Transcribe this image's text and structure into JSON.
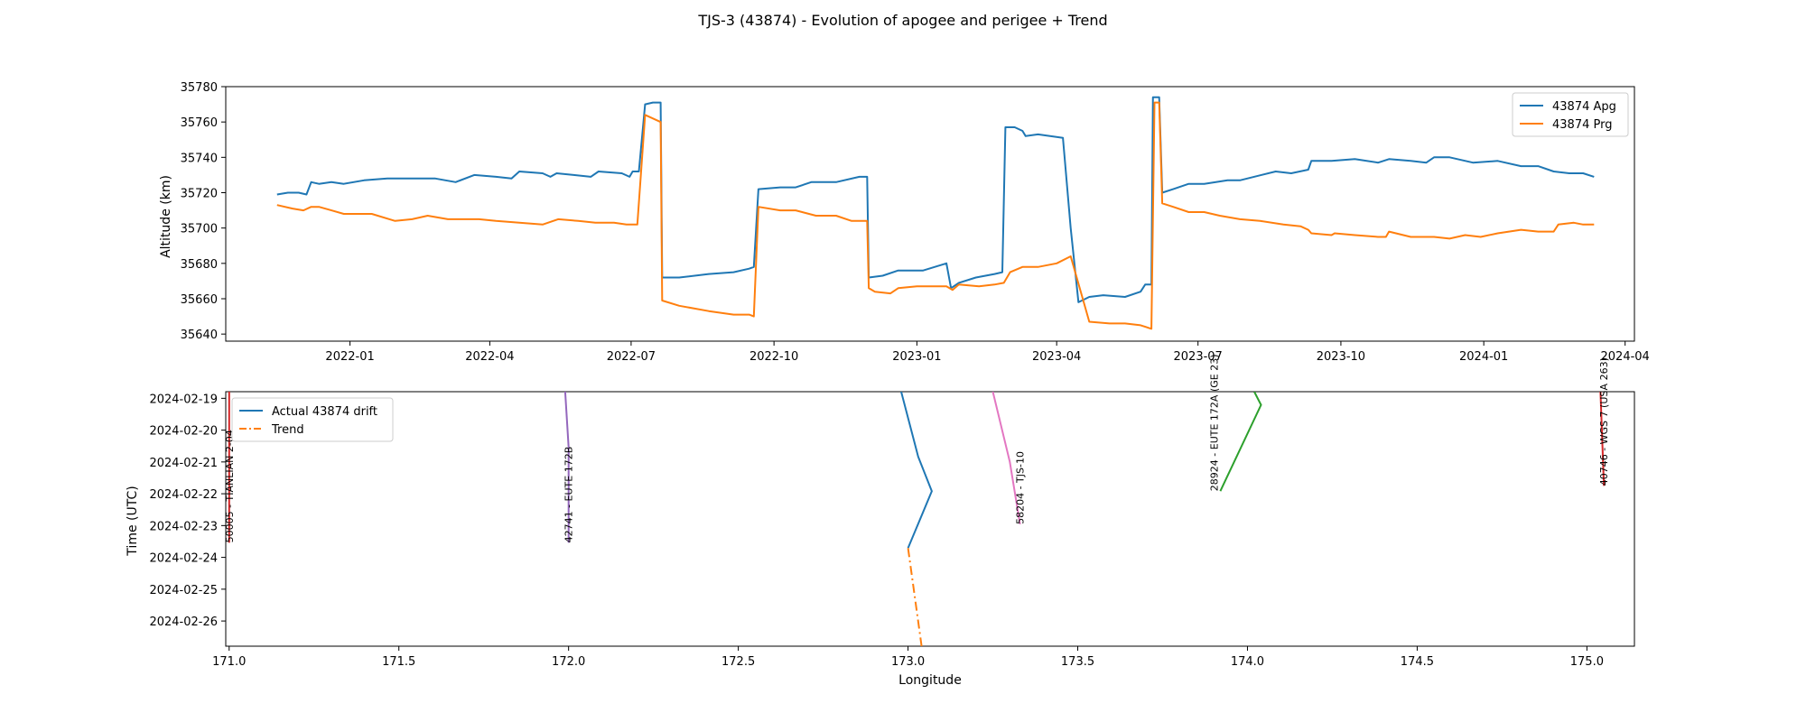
{
  "figure": {
    "title": "TJS-3 (43874) - Evolution of apogee and perigee + Trend"
  },
  "chart_data": [
    {
      "type": "line",
      "ylabel": "Altitude (km)",
      "xlabel": "",
      "x_axis": "date",
      "xlim": [
        "2021-10-13",
        "2024-04-07"
      ],
      "ylim": [
        35636,
        35780
      ],
      "x_ticks": [
        "2022-01-01",
        "2022-04-01",
        "2022-07-01",
        "2022-10-01",
        "2023-01-01",
        "2023-04-01",
        "2023-07-01",
        "2023-10-01",
        "2024-01-01",
        "2024-04-01"
      ],
      "x_tick_labels": [
        "2022-01",
        "2022-04",
        "2022-07",
        "2022-10",
        "2023-01",
        "2023-04",
        "2023-07",
        "2023-10",
        "2024-01",
        "2024-04"
      ],
      "y_ticks": [
        35640,
        35660,
        35680,
        35700,
        35720,
        35740,
        35760,
        35780
      ],
      "y_tick_labels": [
        "35640",
        "35660",
        "35680",
        "35700",
        "35720",
        "35740",
        "35760",
        "35780"
      ],
      "legend_position": "top-right",
      "grid": false,
      "series": [
        {
          "name": "43874 Apg",
          "color": "#1f77b4",
          "points": [
            [
              "2021-11-15",
              35719
            ],
            [
              "2021-11-22",
              35720
            ],
            [
              "2021-11-29",
              35720
            ],
            [
              "2021-12-04",
              35719
            ],
            [
              "2021-12-07",
              35726
            ],
            [
              "2021-12-12",
              35725
            ],
            [
              "2021-12-20",
              35726
            ],
            [
              "2021-12-28",
              35725
            ],
            [
              "2022-01-10",
              35727
            ],
            [
              "2022-01-25",
              35728
            ],
            [
              "2022-02-05",
              35728
            ],
            [
              "2022-02-25",
              35728
            ],
            [
              "2022-03-10",
              35726
            ],
            [
              "2022-03-22",
              35730
            ],
            [
              "2022-04-05",
              35729
            ],
            [
              "2022-04-15",
              35728
            ],
            [
              "2022-04-20",
              35732
            ],
            [
              "2022-05-05",
              35731
            ],
            [
              "2022-05-10",
              35729
            ],
            [
              "2022-05-14",
              35731
            ],
            [
              "2022-05-25",
              35730
            ],
            [
              "2022-06-05",
              35729
            ],
            [
              "2022-06-10",
              35732
            ],
            [
              "2022-06-25",
              35731
            ],
            [
              "2022-06-30",
              35729
            ],
            [
              "2022-07-02",
              35732
            ],
            [
              "2022-07-06",
              35732
            ],
            [
              "2022-07-10",
              35770
            ],
            [
              "2022-07-15",
              35771
            ],
            [
              "2022-07-20",
              35771
            ],
            [
              "2022-07-21",
              35672
            ],
            [
              "2022-08-01",
              35672
            ],
            [
              "2022-08-20",
              35674
            ],
            [
              "2022-09-05",
              35675
            ],
            [
              "2022-09-15",
              35677
            ],
            [
              "2022-09-18",
              35678
            ],
            [
              "2022-09-21",
              35722
            ],
            [
              "2022-10-05",
              35723
            ],
            [
              "2022-10-15",
              35723
            ],
            [
              "2022-10-25",
              35726
            ],
            [
              "2022-11-10",
              35726
            ],
            [
              "2022-11-25",
              35729
            ],
            [
              "2022-11-30",
              35729
            ],
            [
              "2022-12-01",
              35672
            ],
            [
              "2022-12-10",
              35673
            ],
            [
              "2022-12-20",
              35676
            ],
            [
              "2023-01-05",
              35676
            ],
            [
              "2023-01-20",
              35680
            ],
            [
              "2023-01-23",
              35666
            ],
            [
              "2023-01-28",
              35669
            ],
            [
              "2023-02-08",
              35672
            ],
            [
              "2023-02-20",
              35674
            ],
            [
              "2023-02-25",
              35675
            ],
            [
              "2023-02-27",
              35757
            ],
            [
              "2023-03-05",
              35757
            ],
            [
              "2023-03-10",
              35755
            ],
            [
              "2023-03-12",
              35752
            ],
            [
              "2023-03-20",
              35753
            ],
            [
              "2023-04-05",
              35751
            ],
            [
              "2023-04-10",
              35700
            ],
            [
              "2023-04-15",
              35658
            ],
            [
              "2023-04-22",
              35661
            ],
            [
              "2023-05-01",
              35662
            ],
            [
              "2023-05-15",
              35661
            ],
            [
              "2023-05-25",
              35664
            ],
            [
              "2023-05-28",
              35668
            ],
            [
              "2023-06-01",
              35668
            ],
            [
              "2023-06-02",
              35774
            ],
            [
              "2023-06-06",
              35774
            ],
            [
              "2023-06-08",
              35720
            ],
            [
              "2023-06-15",
              35722
            ],
            [
              "2023-06-25",
              35725
            ],
            [
              "2023-07-05",
              35725
            ],
            [
              "2023-07-20",
              35727
            ],
            [
              "2023-07-28",
              35727
            ],
            [
              "2023-08-20",
              35732
            ],
            [
              "2023-08-30",
              35731
            ],
            [
              "2023-09-10",
              35733
            ],
            [
              "2023-09-12",
              35738
            ],
            [
              "2023-09-25",
              35738
            ],
            [
              "2023-10-10",
              35739
            ],
            [
              "2023-10-25",
              35737
            ],
            [
              "2023-11-01",
              35739
            ],
            [
              "2023-11-15",
              35738
            ],
            [
              "2023-11-25",
              35737
            ],
            [
              "2023-11-30",
              35740
            ],
            [
              "2023-12-10",
              35740
            ],
            [
              "2023-12-25",
              35737
            ],
            [
              "2024-01-10",
              35738
            ],
            [
              "2024-01-25",
              35735
            ],
            [
              "2024-02-05",
              35735
            ],
            [
              "2024-02-15",
              35732
            ],
            [
              "2024-02-25",
              35731
            ],
            [
              "2024-03-05",
              35731
            ],
            [
              "2024-03-12",
              35729
            ]
          ]
        },
        {
          "name": "43874 Prg",
          "color": "#ff7f0e",
          "points": [
            [
              "2021-11-15",
              35713
            ],
            [
              "2021-11-25",
              35711
            ],
            [
              "2021-12-02",
              35710
            ],
            [
              "2021-12-07",
              35712
            ],
            [
              "2021-12-12",
              35712
            ],
            [
              "2021-12-20",
              35710
            ],
            [
              "2021-12-28",
              35708
            ],
            [
              "2022-01-15",
              35708
            ],
            [
              "2022-01-30",
              35704
            ],
            [
              "2022-02-10",
              35705
            ],
            [
              "2022-02-20",
              35707
            ],
            [
              "2022-03-05",
              35705
            ],
            [
              "2022-03-15",
              35705
            ],
            [
              "2022-03-25",
              35705
            ],
            [
              "2022-04-05",
              35704
            ],
            [
              "2022-04-20",
              35703
            ],
            [
              "2022-05-05",
              35702
            ],
            [
              "2022-05-15",
              35705
            ],
            [
              "2022-05-28",
              35704
            ],
            [
              "2022-06-08",
              35703
            ],
            [
              "2022-06-20",
              35703
            ],
            [
              "2022-06-28",
              35702
            ],
            [
              "2022-07-05",
              35702
            ],
            [
              "2022-07-10",
              35764
            ],
            [
              "2022-07-20",
              35760
            ],
            [
              "2022-07-21",
              35659
            ],
            [
              "2022-08-01",
              35656
            ],
            [
              "2022-08-20",
              35653
            ],
            [
              "2022-09-05",
              35651
            ],
            [
              "2022-09-15",
              35651
            ],
            [
              "2022-09-18",
              35650
            ],
            [
              "2022-09-21",
              35712
            ],
            [
              "2022-10-05",
              35710
            ],
            [
              "2022-10-15",
              35710
            ],
            [
              "2022-10-28",
              35707
            ],
            [
              "2022-11-10",
              35707
            ],
            [
              "2022-11-20",
              35704
            ],
            [
              "2022-11-30",
              35704
            ],
            [
              "2022-12-01",
              35666
            ],
            [
              "2022-12-05",
              35664
            ],
            [
              "2022-12-15",
              35663
            ],
            [
              "2022-12-20",
              35666
            ],
            [
              "2023-01-01",
              35667
            ],
            [
              "2023-01-20",
              35667
            ],
            [
              "2023-01-24",
              35665
            ],
            [
              "2023-01-28",
              35668
            ],
            [
              "2023-02-10",
              35667
            ],
            [
              "2023-02-20",
              35668
            ],
            [
              "2023-02-26",
              35669
            ],
            [
              "2023-03-02",
              35675
            ],
            [
              "2023-03-10",
              35678
            ],
            [
              "2023-03-20",
              35678
            ],
            [
              "2023-04-01",
              35680
            ],
            [
              "2023-04-10",
              35684
            ],
            [
              "2023-04-22",
              35647
            ],
            [
              "2023-05-05",
              35646
            ],
            [
              "2023-05-15",
              35646
            ],
            [
              "2023-05-25",
              35645
            ],
            [
              "2023-06-01",
              35643
            ],
            [
              "2023-06-03",
              35771
            ],
            [
              "2023-06-06",
              35771
            ],
            [
              "2023-06-08",
              35714
            ],
            [
              "2023-06-15",
              35712
            ],
            [
              "2023-06-25",
              35709
            ],
            [
              "2023-07-05",
              35709
            ],
            [
              "2023-07-15",
              35707
            ],
            [
              "2023-07-28",
              35705
            ],
            [
              "2023-08-10",
              35704
            ],
            [
              "2023-08-25",
              35702
            ],
            [
              "2023-09-05",
              35701
            ],
            [
              "2023-09-10",
              35699
            ],
            [
              "2023-09-12",
              35697
            ],
            [
              "2023-09-25",
              35696
            ],
            [
              "2023-09-27",
              35697
            ],
            [
              "2023-10-10",
              35696
            ],
            [
              "2023-10-25",
              35695
            ],
            [
              "2023-10-30",
              35695
            ],
            [
              "2023-11-01",
              35698
            ],
            [
              "2023-11-15",
              35695
            ],
            [
              "2023-11-30",
              35695
            ],
            [
              "2023-12-10",
              35694
            ],
            [
              "2023-12-20",
              35696
            ],
            [
              "2023-12-30",
              35695
            ],
            [
              "2024-01-10",
              35697
            ],
            [
              "2024-01-25",
              35699
            ],
            [
              "2024-02-05",
              35698
            ],
            [
              "2024-02-15",
              35698
            ],
            [
              "2024-02-18",
              35702
            ],
            [
              "2024-02-28",
              35703
            ],
            [
              "2024-03-05",
              35702
            ],
            [
              "2024-03-12",
              35702
            ]
          ]
        }
      ]
    },
    {
      "type": "line",
      "xlabel": "Longitude",
      "ylabel": "Time (UTC)",
      "y_axis": "date",
      "xlim": [
        170.99,
        175.14
      ],
      "ylim": [
        "2024-02-18T19:00",
        "2024-02-26T19:00"
      ],
      "y_inverted": true,
      "x_ticks": [
        171.0,
        171.5,
        172.0,
        172.5,
        173.0,
        173.5,
        174.0,
        174.5,
        175.0
      ],
      "x_tick_labels": [
        "171.0",
        "171.5",
        "172.0",
        "172.5",
        "173.0",
        "173.5",
        "174.0",
        "174.5",
        "175.0"
      ],
      "y_ticks": [
        "2024-02-19",
        "2024-02-20",
        "2024-02-21",
        "2024-02-22",
        "2024-02-23",
        "2024-02-24",
        "2024-02-25",
        "2024-02-26"
      ],
      "y_tick_labels": [
        "2024-02-19",
        "2024-02-20",
        "2024-02-21",
        "2024-02-22",
        "2024-02-23",
        "2024-02-24",
        "2024-02-25",
        "2024-02-26"
      ],
      "legend_position": "top-left",
      "grid": false,
      "series": [
        {
          "name": "Actual 43874 drift",
          "color": "#1f77b4",
          "dash": "solid",
          "points": [
            [
              172.98,
              "2024-02-18T19:00"
            ],
            [
              173.03,
              "2024-02-20T20:00"
            ],
            [
              173.07,
              "2024-02-21T22:00"
            ],
            [
              173.0,
              "2024-02-23T17:00"
            ]
          ]
        },
        {
          "name": "Trend",
          "color": "#ff7f0e",
          "dash": "dashdot",
          "points": [
            [
              173.0,
              "2024-02-23T17:00"
            ],
            [
              173.04,
              "2024-02-26T19:00"
            ]
          ]
        }
      ],
      "other_satellites": [
        {
          "label": "50005 - TIANLIAN 2-04",
          "color": "#d62728",
          "label_side": "right",
          "points": [
            [
              171.0,
              "2024-02-18T19:00"
            ],
            [
              171.0,
              "2024-02-23T13:00"
            ]
          ]
        },
        {
          "label": "42741 - EUTE 172B",
          "color": "#9467bd",
          "label_side": "right",
          "points": [
            [
              171.99,
              "2024-02-18T19:00"
            ],
            [
              172.0,
              "2024-02-20T13:00"
            ],
            [
              172.0,
              "2024-02-23T13:00"
            ]
          ]
        },
        {
          "label": "58204 - TJS-10",
          "color": "#e377c2",
          "label_side": "right",
          "points": [
            [
              173.25,
              "2024-02-18T19:00"
            ],
            [
              173.3,
              "2024-02-21T00:00"
            ],
            [
              173.33,
              "2024-02-22T23:00"
            ]
          ]
        },
        {
          "label": "28924 - EUTE 172A (GE 23)",
          "color": "#2ca02c",
          "label_side": "left",
          "points": [
            [
              174.02,
              "2024-02-18T19:00"
            ],
            [
              174.04,
              "2024-02-19T05:00"
            ],
            [
              173.92,
              "2024-02-21T22:00"
            ]
          ]
        },
        {
          "label": "40746 - WGS 7 (USA 263)",
          "color": "#d62728",
          "label_side": "right",
          "points": [
            [
              175.04,
              "2024-02-18T19:00"
            ],
            [
              175.05,
              "2024-02-21T18:00"
            ]
          ]
        }
      ]
    }
  ]
}
